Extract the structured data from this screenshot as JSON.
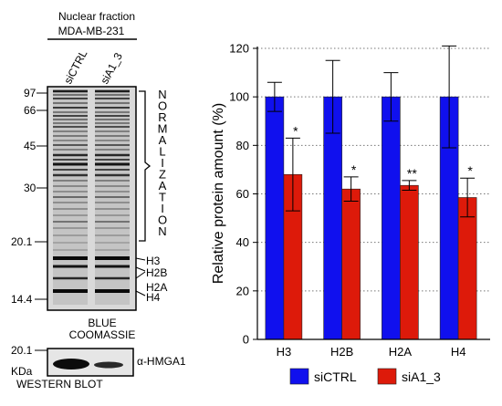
{
  "figure": {
    "left_panel": {
      "title_line1": "Nuclear fraction",
      "title_line2": "MDA-MB-231",
      "lane_labels": [
        "siCTRL",
        "siA1_3"
      ],
      "mw_markers": [
        "97",
        "66",
        "45",
        "30",
        "20.1",
        "14.4"
      ],
      "histone_labels": [
        "H3",
        "H2B",
        "H2A",
        "H4"
      ],
      "normalization_label": "NORMALIZATION",
      "stain_label_line1": "BLUE",
      "stain_label_line2": "COOMASSIE",
      "western": {
        "marker": "20.1",
        "unit": "KDa",
        "antibody": "α-HMGA1",
        "label": "WESTERN BLOT"
      }
    }
  },
  "chart_data": {
    "type": "bar",
    "ylabel": "Relative protein amount (%)",
    "xlabel": "",
    "title": "",
    "ylim": [
      0,
      120
    ],
    "yticks": [
      "0",
      "20",
      "40",
      "60",
      "80",
      "100",
      "120"
    ],
    "grid": "horizontal dotted",
    "categories": [
      "H3",
      "H2B",
      "H2A",
      "H4"
    ],
    "series": [
      {
        "name": "siCTRL",
        "color": "#1010ee",
        "values": [
          100,
          100,
          100,
          100
        ],
        "errors": [
          6,
          15,
          10,
          21
        ]
      },
      {
        "name": "siA1_3",
        "color": "#dd1a0a",
        "values": [
          68,
          62,
          63.5,
          58.5
        ],
        "errors": [
          15,
          5,
          2,
          8
        ]
      }
    ],
    "significance": [
      "*",
      "*",
      "**",
      "*"
    ],
    "legend_placement": "bottom"
  }
}
